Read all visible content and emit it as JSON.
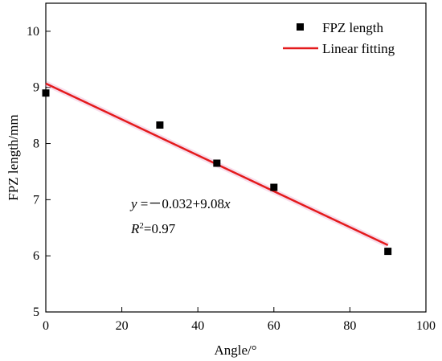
{
  "chart_data": {
    "type": "scatter",
    "xlabel": "Angle/°",
    "ylabel": "FPZ length/mm",
    "xlim": [
      0,
      100
    ],
    "ylim": [
      5,
      10.5
    ],
    "xticks": [
      0,
      20,
      40,
      60,
      80,
      100
    ],
    "yticks": [
      5,
      6,
      7,
      8,
      9,
      10
    ],
    "xtick_labels": [
      "0",
      "20",
      "40",
      "60",
      "80",
      "100"
    ],
    "ytick_labels": [
      "5",
      "6",
      "7",
      "8",
      "9",
      "10"
    ],
    "series": [
      {
        "name": "FPZ length",
        "kind": "scatter",
        "marker": "square",
        "color": "#000000",
        "x": [
          0,
          30,
          45,
          60,
          90
        ],
        "y": [
          8.9,
          8.33,
          7.65,
          7.22,
          6.08
        ]
      },
      {
        "name": "Linear fitting",
        "kind": "line",
        "color": "#e41a1c",
        "x": [
          0,
          90
        ],
        "y": [
          9.07,
          6.19
        ]
      }
    ],
    "legend_position": "top-right",
    "annotations": {
      "equation": {
        "y_var": "y",
        "equals": " =－0.032+9.08",
        "x_var": "x"
      },
      "r2": {
        "r": "R",
        "sup": "2",
        "rest": "=0.97"
      }
    },
    "grid": false
  }
}
